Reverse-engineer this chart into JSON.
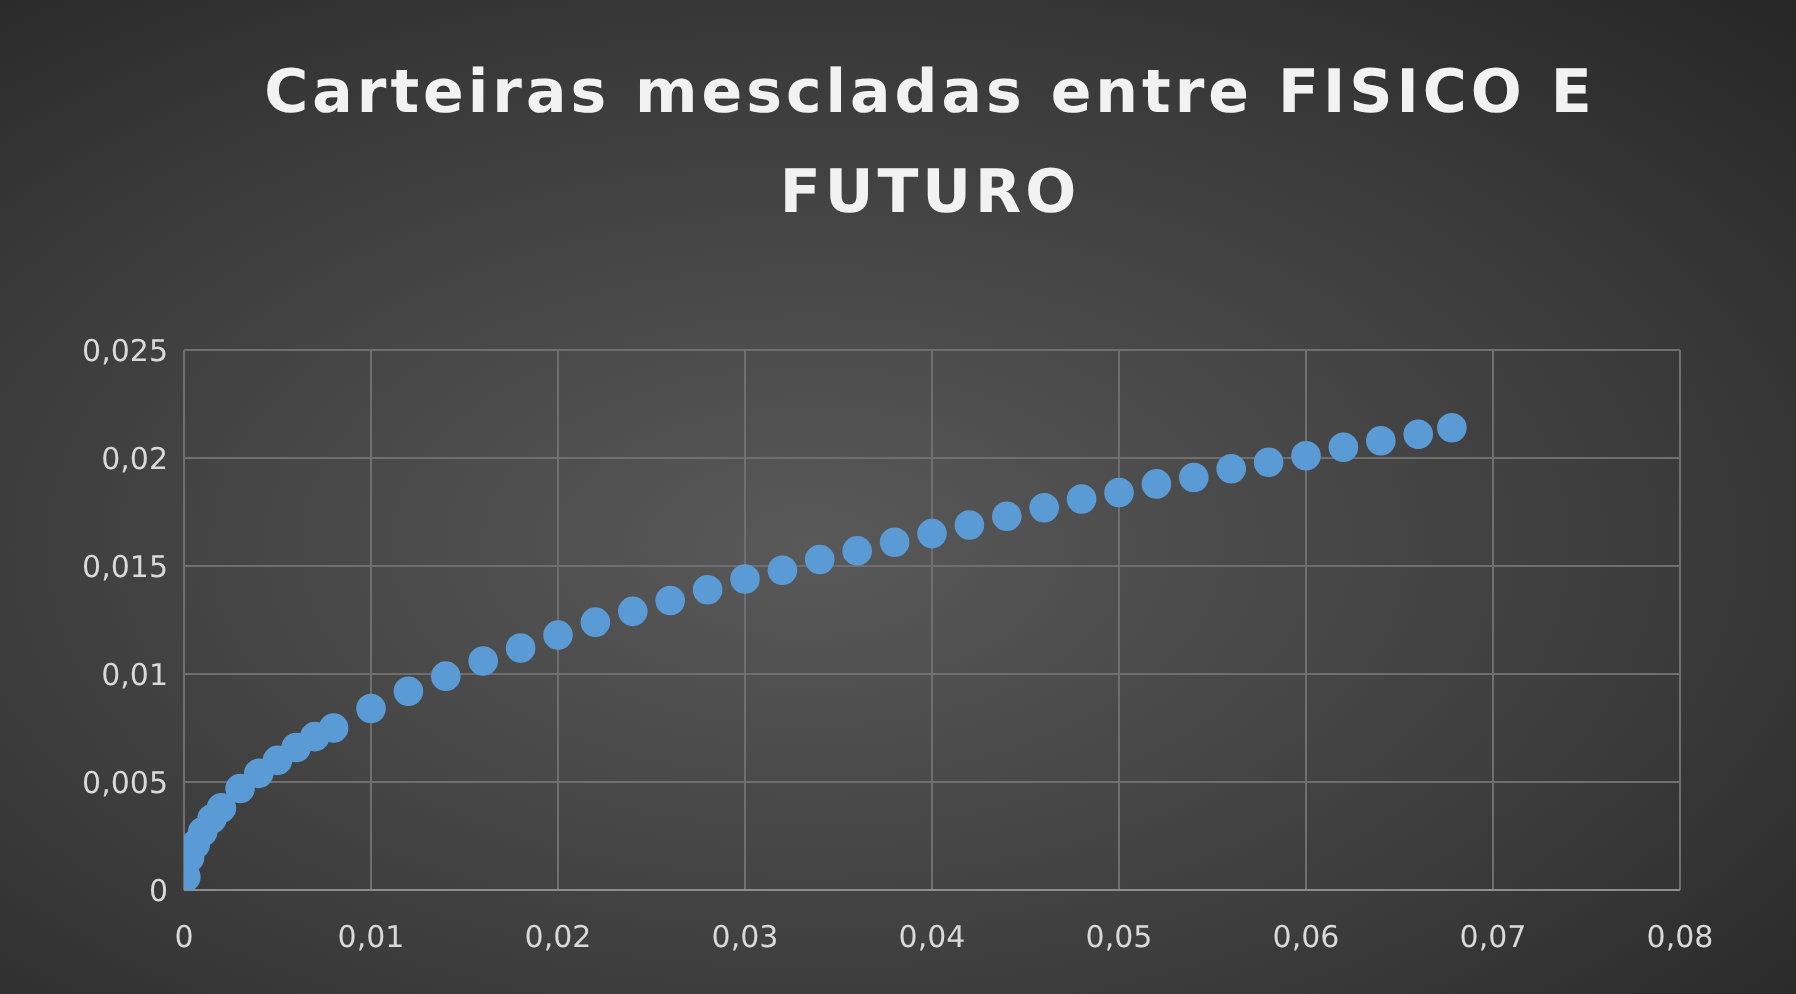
{
  "chart_data": {
    "type": "scatter",
    "title": "Carteiras mescladas entre FISICO E FUTURO",
    "series": [
      {
        "color": "#5b9bd5",
        "x": [
          0.0001,
          0.0003,
          0.0006,
          0.001,
          0.0015,
          0.002,
          0.003,
          0.004,
          0.005,
          0.006,
          0.007,
          0.008,
          0.01,
          0.012,
          0.014,
          0.016,
          0.018,
          0.02,
          0.022,
          0.024,
          0.026,
          0.028,
          0.03,
          0.032,
          0.034,
          0.036,
          0.038,
          0.04,
          0.042,
          0.044,
          0.046,
          0.048,
          0.05,
          0.052,
          0.054,
          0.056,
          0.058,
          0.06,
          0.062,
          0.064,
          0.066,
          0.0678
        ],
        "values": [
          0.0006,
          0.0015,
          0.0021,
          0.0027,
          0.0033,
          0.0038,
          0.0047,
          0.0054,
          0.006,
          0.0066,
          0.0071,
          0.0075,
          0.0084,
          0.0092,
          0.0099,
          0.0106,
          0.0112,
          0.0118,
          0.0124,
          0.0129,
          0.0134,
          0.0139,
          0.0144,
          0.0148,
          0.0153,
          0.0157,
          0.0161,
          0.0165,
          0.0169,
          0.0173,
          0.0177,
          0.0181,
          0.0184,
          0.0188,
          0.0191,
          0.0195,
          0.0198,
          0.0201,
          0.0205,
          0.0208,
          0.0211,
          0.0214
        ]
      }
    ],
    "xlim": [
      0,
      0.08
    ],
    "xticks": [
      0,
      {
        "value": 0.01,
        "label": "0,01"
      },
      {
        "value": 0.02,
        "label": "0,02"
      },
      {
        "value": 0.03,
        "label": "0,03"
      },
      {
        "value": 0.04,
        "label": "0,04"
      },
      {
        "value": 0.05,
        "label": "0,05"
      },
      {
        "value": 0.06,
        "label": "0,06"
      },
      {
        "value": 0.07,
        "label": "0,07"
      },
      {
        "value": 0.08,
        "label": "0,08"
      }
    ],
    "ylim": [
      0,
      0.025
    ],
    "yticks": [
      0,
      {
        "value": 0.005,
        "label": "0,005"
      },
      {
        "value": 0.01,
        "label": "0,01"
      },
      {
        "value": 0.015,
        "label": "0,015"
      },
      {
        "value": 0.02,
        "label": "0,02"
      },
      {
        "value": 0.025,
        "label": "0,025"
      }
    ],
    "grid": true,
    "marker": "circle",
    "legend": false
  }
}
